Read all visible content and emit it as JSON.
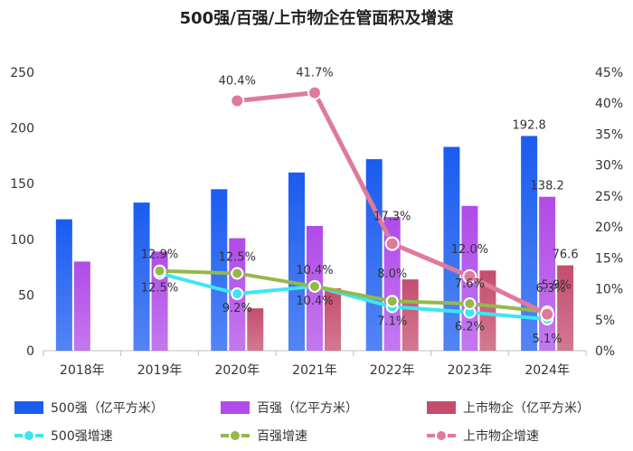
{
  "chart_data": {
    "type": "bar",
    "title": "500强/百强/上市物企在管面积及增速",
    "categories": [
      "2018年",
      "2019年",
      "2020年",
      "2021年",
      "2022年",
      "2023年",
      "2024年"
    ],
    "y_left": {
      "min": 0,
      "max": 250,
      "ticks": [
        0,
        50,
        100,
        150,
        200,
        250
      ]
    },
    "y_right": {
      "min": 0,
      "max": 45,
      "ticks": [
        "0%",
        "5%",
        "10%",
        "15%",
        "20%",
        "25%",
        "30%",
        "35%",
        "40%",
        "45%"
      ]
    },
    "bar_series": [
      {
        "name": "500强（亿平方米）",
        "color": "#1a5cf0",
        "values": [
          118,
          133,
          145,
          160,
          172,
          183,
          192.8
        ],
        "labels": [
          null,
          null,
          null,
          null,
          null,
          null,
          "192.8"
        ]
      },
      {
        "name": "百强（亿平方米）",
        "color": "#b04be8",
        "values": [
          80,
          89,
          101,
          112,
          120,
          130,
          138.2
        ],
        "labels": [
          null,
          null,
          null,
          null,
          null,
          null,
          "138.2"
        ]
      },
      {
        "name": "上市物企（亿平方米）",
        "color": "#c44d6e",
        "values": [
          null,
          null,
          38,
          56,
          64,
          72,
          76.6
        ],
        "labels": [
          null,
          null,
          null,
          null,
          null,
          null,
          "76.6"
        ]
      }
    ],
    "line_series": [
      {
        "name": "500强增速",
        "color": "#3de6f2",
        "values": [
          null,
          12.5,
          9.2,
          10.4,
          7.1,
          6.2,
          5.1
        ],
        "labels": [
          null,
          "12.5%",
          "9.2%",
          "10.4%",
          "7.1%",
          "6.2%",
          "5.1%"
        ]
      },
      {
        "name": "百强增速",
        "color": "#94b84a",
        "values": [
          null,
          12.9,
          12.5,
          10.4,
          8.0,
          7.6,
          6.3
        ],
        "labels": [
          null,
          "12.9%",
          "12.5%",
          "10.4%",
          "8.0%",
          "7.6%",
          "6.3%"
        ]
      },
      {
        "name": "上市物企增速",
        "color": "#e07a9a",
        "values": [
          null,
          null,
          40.4,
          41.7,
          17.3,
          12.0,
          5.9
        ],
        "labels": [
          null,
          null,
          "40.4%",
          "41.7%",
          "17.3%",
          "12.0%",
          "5.9%"
        ]
      }
    ],
    "legend_position": "bottom"
  }
}
